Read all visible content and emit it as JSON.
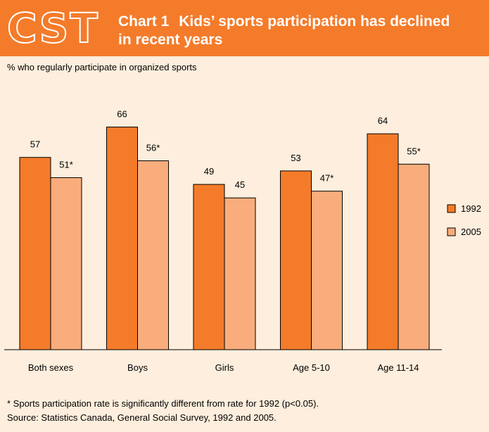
{
  "header": {
    "logo_text": "CST",
    "chart_number": "Chart 1",
    "title": "Kids’ sports participation has declined in recent years"
  },
  "subtitle": "% who regularly participate in organized sports",
  "footnote": "* Sports participation rate is significantly different from rate for 1992 (p<0.05).",
  "source": "Source: Statistics Canada, General Social Survey, 1992 and 2005.",
  "colors": {
    "s1992": "#f47b2a",
    "s2005": "#f9ad7c"
  },
  "chart_data": {
    "type": "bar",
    "title": "Kids’ sports participation has declined in recent years",
    "ylabel": "% who regularly participate in organized sports",
    "categories": [
      "Both sexes",
      "Boys",
      "Girls",
      "Age 5-10",
      "Age 11-14"
    ],
    "series": [
      {
        "name": "1992",
        "values": [
          57,
          66,
          49,
          53,
          64
        ],
        "labels": [
          "57",
          "66",
          "49",
          "53",
          "64"
        ]
      },
      {
        "name": "2005",
        "values": [
          51,
          56,
          45,
          47,
          55
        ],
        "labels": [
          "51*",
          "56*",
          "45",
          "47*",
          "55*"
        ]
      }
    ],
    "ylim": [
      0,
      73
    ],
    "grid": false,
    "legend": "right"
  }
}
